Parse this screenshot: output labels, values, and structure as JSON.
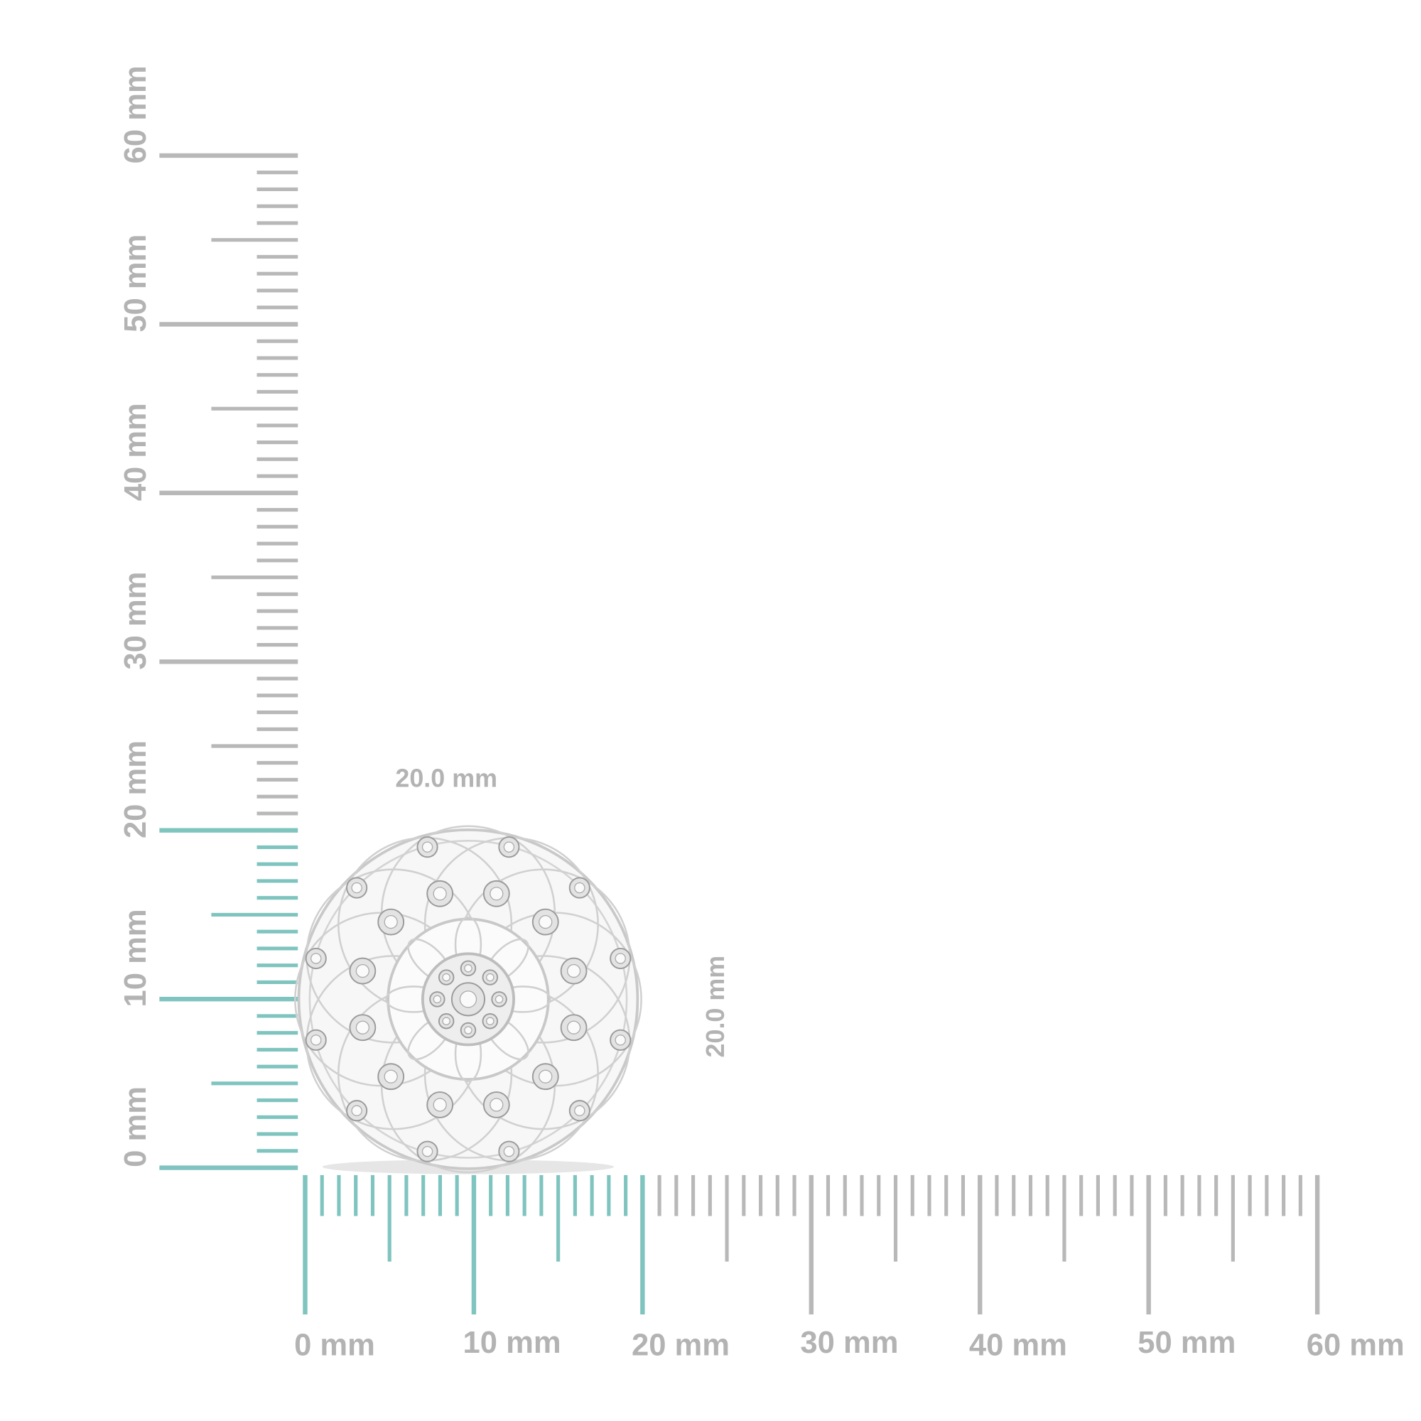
{
  "horizontal_ruler": {
    "labels": [
      "0 mm",
      "10 mm",
      "20 mm",
      "30 mm",
      "40 mm",
      "50 mm",
      "60 mm"
    ]
  },
  "vertical_ruler": {
    "labels": [
      "0 mm",
      "10 mm",
      "20 mm",
      "30 mm",
      "40 mm",
      "50 mm",
      "60 mm"
    ]
  },
  "dimensions": {
    "width": "20.0 mm",
    "height": "20.0 mm"
  }
}
